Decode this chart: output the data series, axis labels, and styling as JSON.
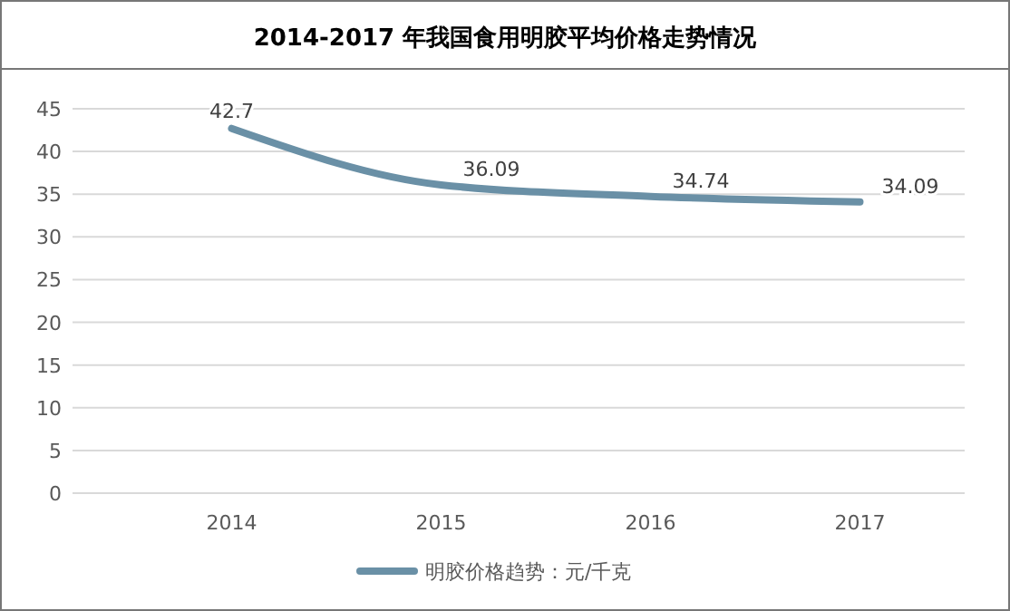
{
  "chart_data": {
    "type": "line",
    "title": "2014-2017 年我国食用明胶平均价格走势情况",
    "categories": [
      "2014",
      "2015",
      "2016",
      "2017"
    ],
    "series": [
      {
        "name": "明胶价格趋势：元/千克",
        "color": "#6a90a6",
        "values": [
          42.7,
          36.09,
          34.74,
          34.09
        ]
      }
    ],
    "ylim": [
      0,
      45
    ],
    "yticks": [
      0,
      5,
      10,
      15,
      20,
      25,
      30,
      35,
      40,
      45
    ],
    "grid": "y",
    "legend": "bottom",
    "data_labels": true,
    "marker": "none",
    "line_style": "solid"
  }
}
